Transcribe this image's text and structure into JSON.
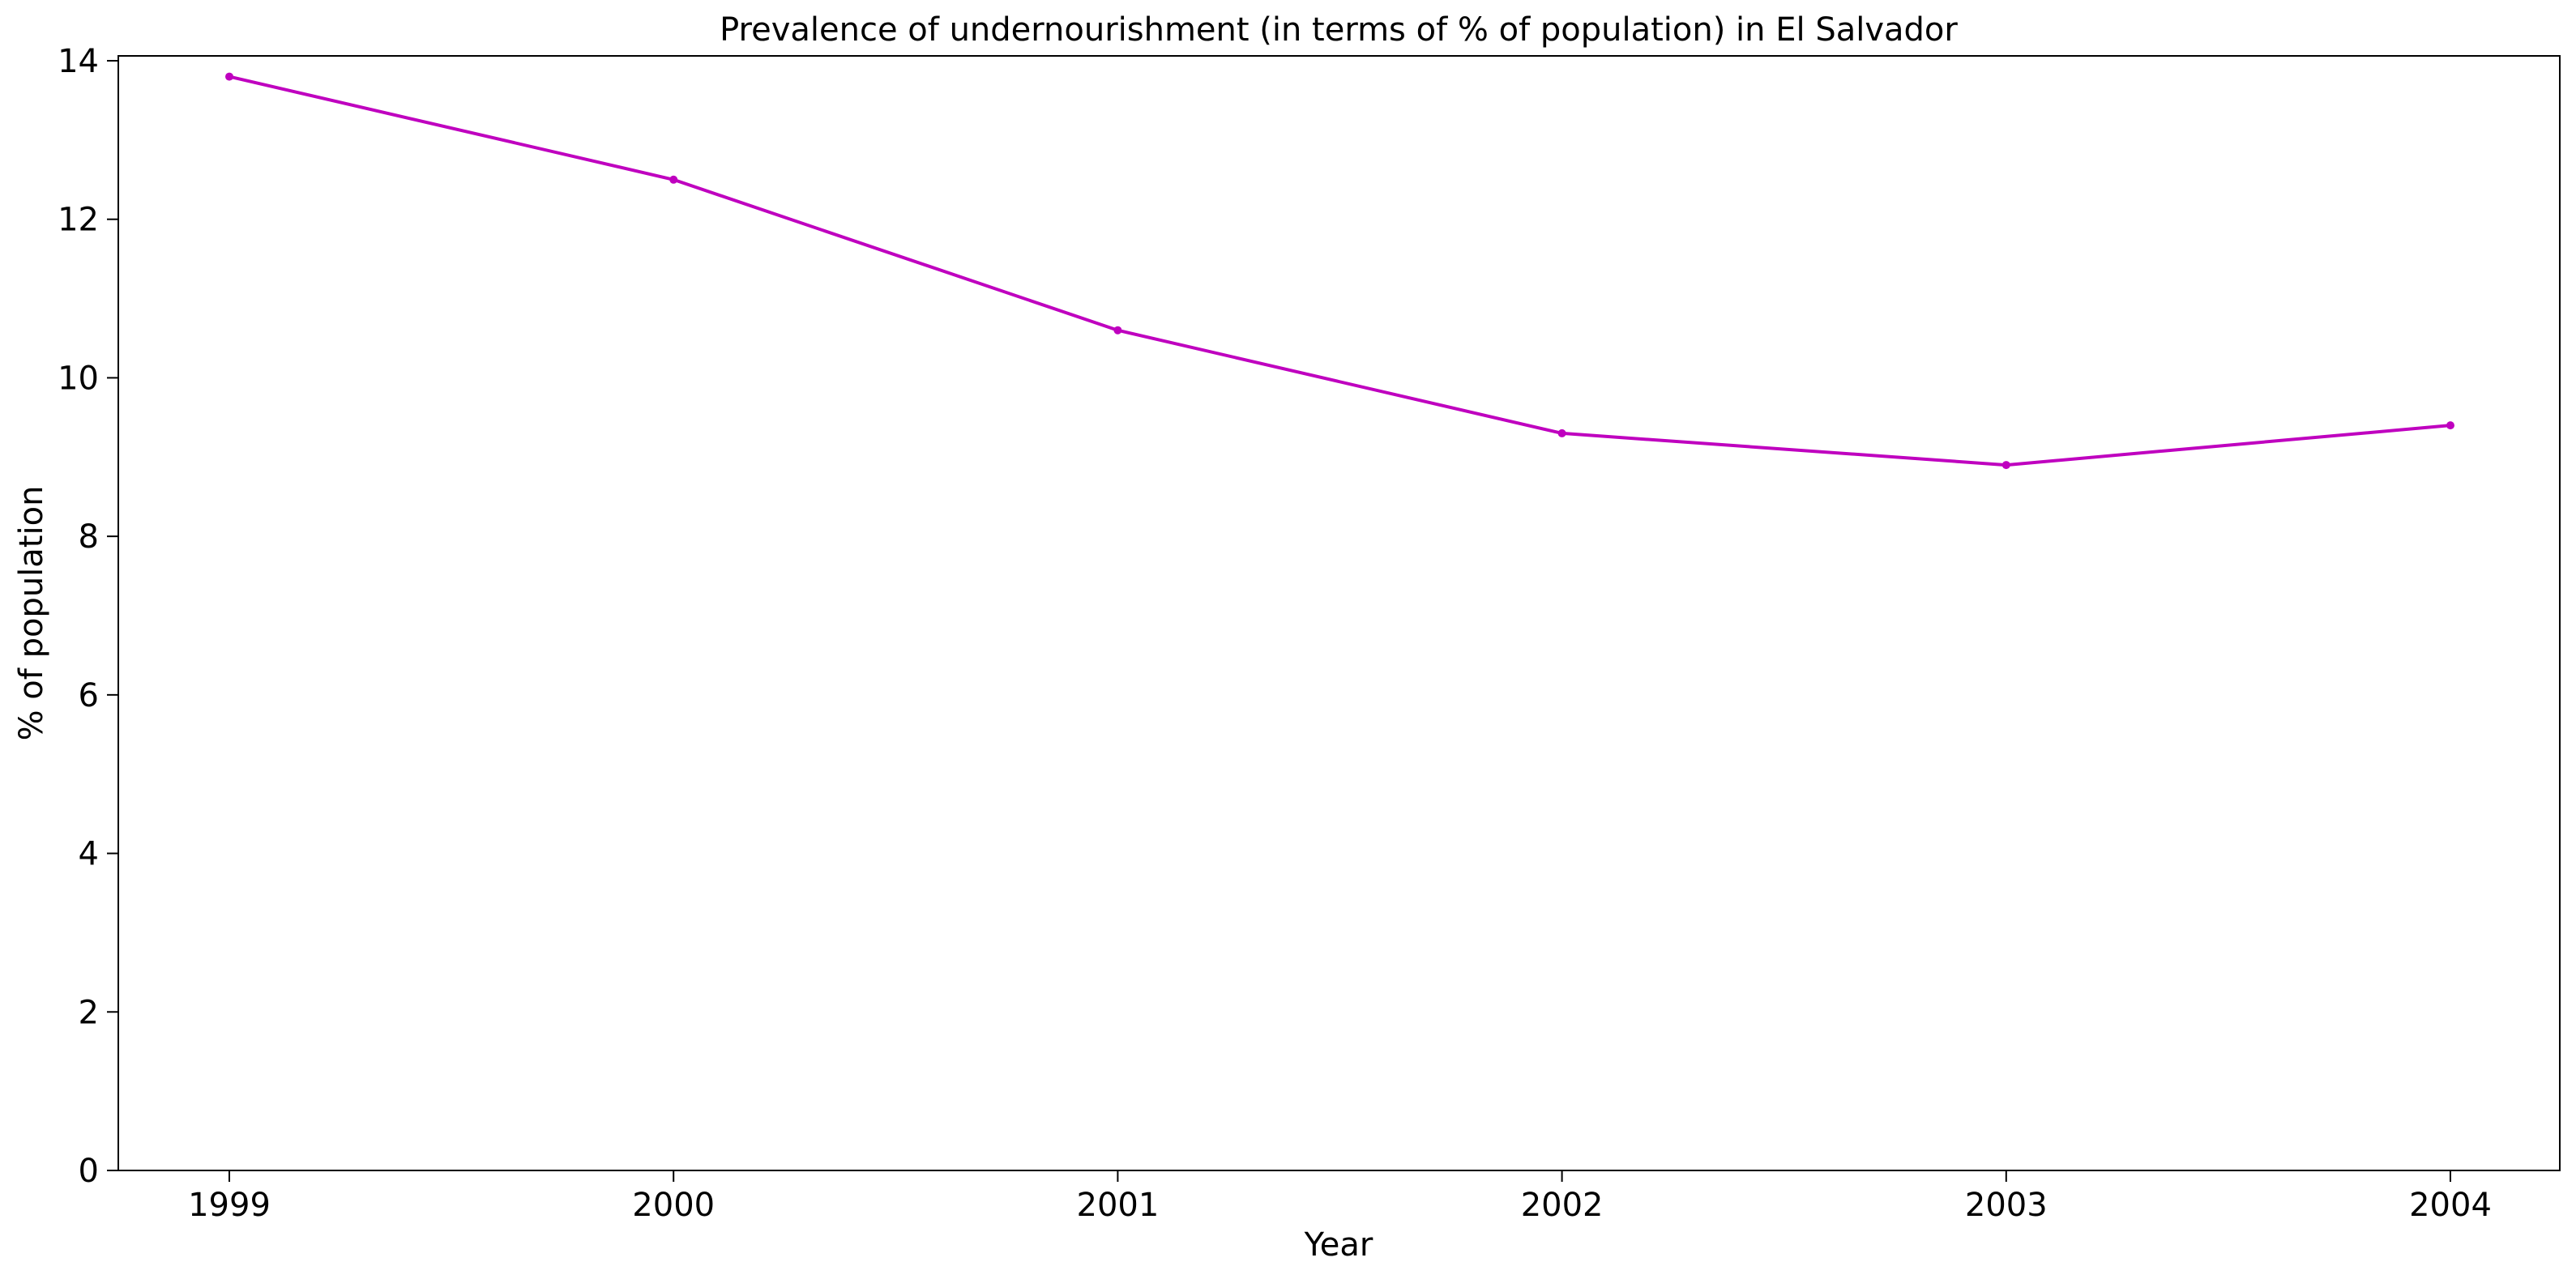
{
  "chart_data": {
    "type": "line",
    "title": "Prevalence of undernourishment (in terms of % of population) in El Salvador",
    "xlabel": "Year",
    "ylabel": "% of population",
    "x": [
      "1999",
      "2000",
      "2001",
      "2002",
      "2003",
      "2004"
    ],
    "series": [
      {
        "values": [
          13.8,
          12.5,
          10.6,
          9.3,
          8.9,
          9.4
        ],
        "color": "#bf00bf"
      }
    ],
    "ylim": [
      0,
      14
    ],
    "yticks": [
      0,
      2,
      4,
      6,
      8,
      10,
      12,
      14
    ],
    "grid": false,
    "legend": "none"
  }
}
